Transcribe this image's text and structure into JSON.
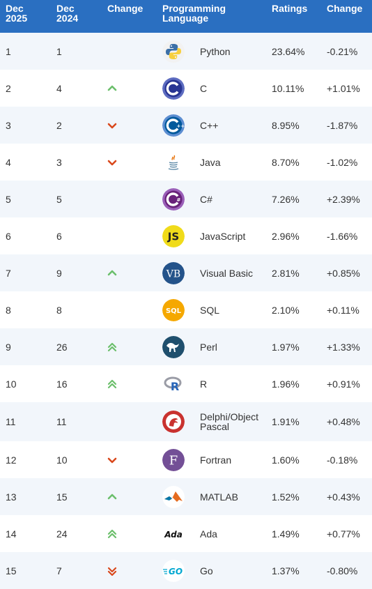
{
  "headers": {
    "rank_now": "Dec\n2025",
    "rank_prev": "Dec\n2024",
    "change": "Change",
    "language": "Programming\nLanguage",
    "ratings": "Ratings",
    "rating_change": "Change"
  },
  "colors": {
    "header_bg": "#2a6fc1",
    "up": "#6cbf6c",
    "down": "#d9481c"
  },
  "rows": [
    {
      "rank": "1",
      "prev": "1",
      "trend": "none",
      "lang": "Python",
      "logo": "python-logo",
      "rating": "23.64%",
      "delta": "-0.21%"
    },
    {
      "rank": "2",
      "prev": "4",
      "trend": "up",
      "lang": "C",
      "logo": "c-logo",
      "rating": "10.11%",
      "delta": "+1.01%"
    },
    {
      "rank": "3",
      "prev": "2",
      "trend": "down",
      "lang": "C++",
      "logo": "cpp-logo",
      "rating": "8.95%",
      "delta": "-1.87%"
    },
    {
      "rank": "4",
      "prev": "3",
      "trend": "down",
      "lang": "Java",
      "logo": "java-logo",
      "rating": "8.70%",
      "delta": "-1.02%"
    },
    {
      "rank": "5",
      "prev": "5",
      "trend": "none",
      "lang": "C#",
      "logo": "csharp-logo",
      "rating": "7.26%",
      "delta": "+2.39%"
    },
    {
      "rank": "6",
      "prev": "6",
      "trend": "none",
      "lang": "JavaScript",
      "logo": "javascript-logo",
      "logo_text": "JS",
      "rating": "2.96%",
      "delta": "-1.66%"
    },
    {
      "rank": "7",
      "prev": "9",
      "trend": "up",
      "lang": "Visual Basic",
      "logo": "visual-basic-logo",
      "logo_text": "VB",
      "rating": "2.81%",
      "delta": "+0.85%"
    },
    {
      "rank": "8",
      "prev": "8",
      "trend": "none",
      "lang": "SQL",
      "logo": "sql-logo",
      "logo_text": "SQL",
      "rating": "2.10%",
      "delta": "+0.11%"
    },
    {
      "rank": "9",
      "prev": "26",
      "trend": "up2",
      "lang": "Perl",
      "logo": "perl-logo",
      "rating": "1.97%",
      "delta": "+1.33%"
    },
    {
      "rank": "10",
      "prev": "16",
      "trend": "up2",
      "lang": "R",
      "logo": "r-logo",
      "logo_text": "R",
      "rating": "1.96%",
      "delta": "+0.91%"
    },
    {
      "rank": "11",
      "prev": "11",
      "trend": "none",
      "lang": "Delphi/Object\nPascal",
      "logo": "delphi-logo",
      "rating": "1.91%",
      "delta": "+0.48%"
    },
    {
      "rank": "12",
      "prev": "10",
      "trend": "down",
      "lang": "Fortran",
      "logo": "fortran-logo",
      "logo_text": "F",
      "rating": "1.60%",
      "delta": "-0.18%"
    },
    {
      "rank": "13",
      "prev": "15",
      "trend": "up",
      "lang": "MATLAB",
      "logo": "matlab-logo",
      "rating": "1.52%",
      "delta": "+0.43%"
    },
    {
      "rank": "14",
      "prev": "24",
      "trend": "up2",
      "lang": "Ada",
      "logo": "ada-logo",
      "logo_text": "Ada",
      "rating": "1.49%",
      "delta": "+0.77%"
    },
    {
      "rank": "15",
      "prev": "7",
      "trend": "down2",
      "lang": "Go",
      "logo": "go-logo",
      "logo_text": "GO",
      "rating": "1.37%",
      "delta": "-0.80%"
    }
  ]
}
